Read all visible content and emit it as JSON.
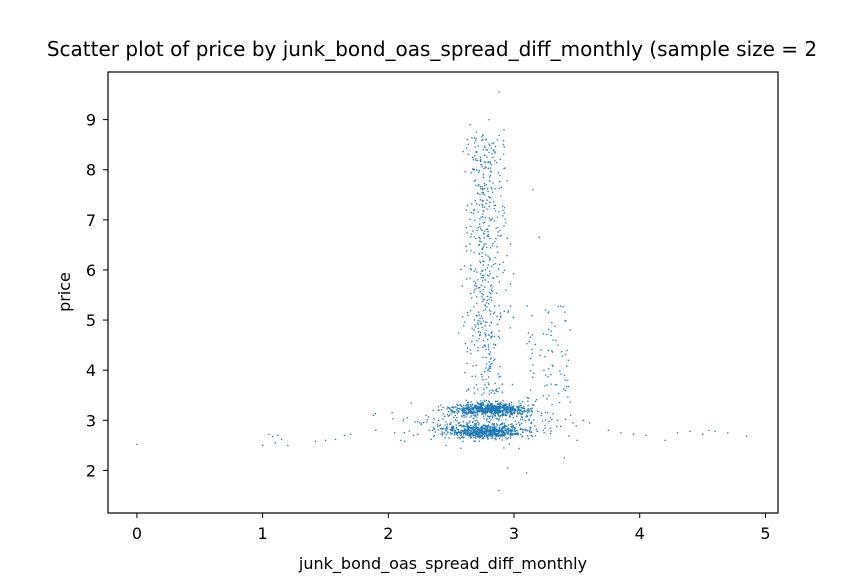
{
  "chart_data": {
    "type": "scatter",
    "title": "Scatter plot of price by junk_bond_oas_spread_diff_monthly (sample size = 2",
    "xlabel": "junk_bond_oas_spread_diff_monthly",
    "ylabel": "price",
    "xlim": [
      -0.23,
      5.1
    ],
    "ylim": [
      1.15,
      9.95
    ],
    "xticks": [
      0,
      1,
      2,
      3,
      4,
      5
    ],
    "yticks": [
      2,
      3,
      4,
      5,
      6,
      7,
      8,
      9
    ],
    "grid": false,
    "marker_color": "#1f77b4",
    "sample_points": [
      [
        0.0,
        2.52
      ],
      [
        1.0,
        2.5
      ],
      [
        1.05,
        2.72
      ],
      [
        1.08,
        2.68
      ],
      [
        1.1,
        2.55
      ],
      [
        1.12,
        2.7
      ],
      [
        1.15,
        2.62
      ],
      [
        1.2,
        2.5
      ],
      [
        1.42,
        2.58
      ],
      [
        1.5,
        2.6
      ],
      [
        1.58,
        2.62
      ],
      [
        1.65,
        2.7
      ],
      [
        1.7,
        2.72
      ],
      [
        1.88,
        3.1
      ],
      [
        1.9,
        2.8
      ],
      [
        2.05,
        2.75
      ],
      [
        2.1,
        2.6
      ],
      [
        2.15,
        3.05
      ],
      [
        2.2,
        2.7
      ],
      [
        2.25,
        2.95
      ],
      [
        2.3,
        3.1
      ],
      [
        2.35,
        2.8
      ],
      [
        2.4,
        3.0
      ],
      [
        2.45,
        2.65
      ],
      [
        2.5,
        3.2
      ],
      [
        2.55,
        2.75
      ],
      [
        2.6,
        3.3
      ],
      [
        2.62,
        3.4
      ],
      [
        2.65,
        8.9
      ],
      [
        2.7,
        8.75
      ],
      [
        2.75,
        8.6
      ],
      [
        2.8,
        9.0
      ],
      [
        2.88,
        9.55
      ],
      [
        2.92,
        8.8
      ],
      [
        2.95,
        2.05
      ],
      [
        2.88,
        1.6
      ],
      [
        3.1,
        1.95
      ],
      [
        3.15,
        7.6
      ],
      [
        3.2,
        6.65
      ],
      [
        3.25,
        5.2
      ],
      [
        3.3,
        4.95
      ],
      [
        3.35,
        4.5
      ],
      [
        3.4,
        3.9
      ],
      [
        3.45,
        3.1
      ],
      [
        3.4,
        2.25
      ],
      [
        3.5,
        2.6
      ],
      [
        3.55,
        3.0
      ],
      [
        3.6,
        2.95
      ],
      [
        3.75,
        2.8
      ],
      [
        3.85,
        2.75
      ],
      [
        3.95,
        2.72
      ],
      [
        4.05,
        2.7
      ],
      [
        4.2,
        2.6
      ],
      [
        4.3,
        2.75
      ],
      [
        4.4,
        2.78
      ],
      [
        4.5,
        2.72
      ],
      [
        4.55,
        2.8
      ],
      [
        4.6,
        2.78
      ],
      [
        4.7,
        2.75
      ],
      [
        4.85,
        2.68
      ]
    ]
  }
}
